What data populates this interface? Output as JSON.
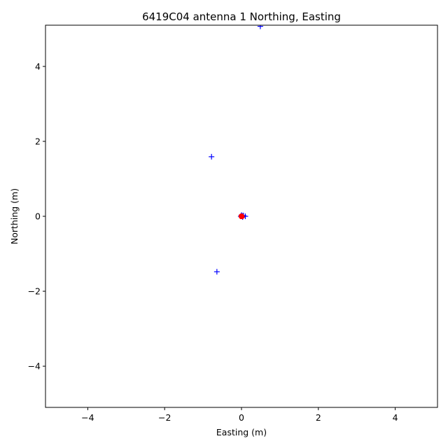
{
  "chart_data": {
    "type": "scatter",
    "title": "6419C04 antenna 1 Northing, Easting",
    "xlabel": "Easting (m)",
    "ylabel": "Northing (m)",
    "xlim": [
      -5.1,
      5.1
    ],
    "ylim": [
      -5.1,
      5.1
    ],
    "grid": false,
    "legend": "none",
    "xticks": [
      -4,
      -2,
      0,
      2,
      4
    ],
    "yticks": [
      -4,
      -2,
      0,
      2,
      4
    ],
    "xtick_labels": [
      "−4",
      "−2",
      "0",
      "2",
      "4"
    ],
    "ytick_labels": [
      "−4",
      "−2",
      "0",
      "2",
      "4"
    ],
    "series": [
      {
        "marker": "plus",
        "color": "#0000ff",
        "points": [
          {
            "x": 0.49,
            "y": 5.07
          },
          {
            "x": -0.78,
            "y": 1.59
          },
          {
            "x": -0.64,
            "y": -1.48
          },
          {
            "x": 0.0,
            "y": 0.03
          },
          {
            "x": 0.05,
            "y": 0.02
          },
          {
            "x": 0.1,
            "y": 0.0
          },
          {
            "x": -0.02,
            "y": 0.0
          },
          {
            "x": 0.03,
            "y": -0.02
          },
          {
            "x": 0.02,
            "y": 0.01
          }
        ]
      },
      {
        "marker": "circle",
        "color": "#ff0000",
        "points": [
          {
            "x": 0.0,
            "y": 0.0
          },
          {
            "x": 0.01,
            "y": 0.01
          },
          {
            "x": -0.01,
            "y": -0.01
          },
          {
            "x": 0.02,
            "y": -0.01
          },
          {
            "x": -0.01,
            "y": 0.01
          }
        ]
      }
    ]
  }
}
